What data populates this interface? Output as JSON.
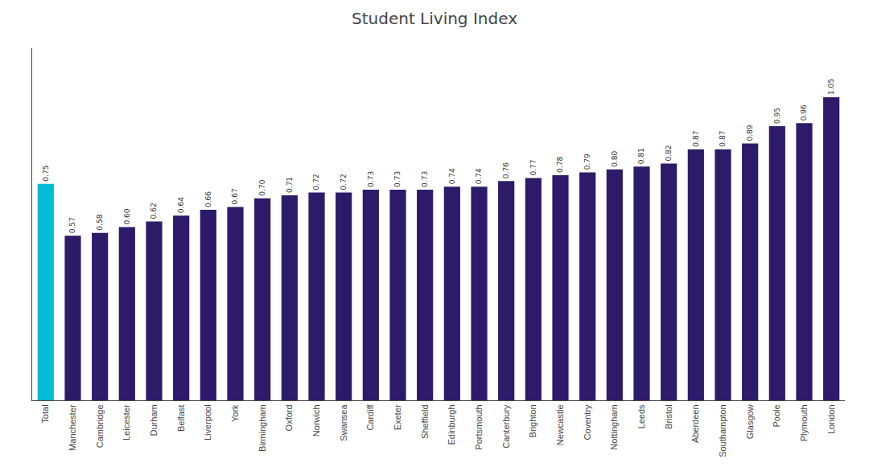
{
  "chart_data": {
    "type": "bar",
    "title": "Student Living Index",
    "categories": [
      "Total",
      "Manchester",
      "Cambridge",
      "Leicester",
      "Durham",
      "Belfast",
      "Liverpool",
      "York",
      "Birmingham",
      "Oxford",
      "Norwich",
      "Swansea",
      "Cardiff",
      "Exeter",
      "Sheffield",
      "Edinburgh",
      "Portsmouth",
      "Canterbury",
      "Brighton",
      "Newcastle",
      "Coventry",
      "Nottingham",
      "Leeds",
      "Bristol",
      "Aberdeen",
      "Southampton",
      "Glasgow",
      "Poole",
      "Plymouth",
      "London"
    ],
    "values": [
      0.75,
      0.57,
      0.58,
      0.6,
      0.62,
      0.64,
      0.66,
      0.67,
      0.7,
      0.71,
      0.72,
      0.72,
      0.73,
      0.73,
      0.73,
      0.74,
      0.74,
      0.76,
      0.77,
      0.78,
      0.79,
      0.8,
      0.81,
      0.82,
      0.87,
      0.87,
      0.89,
      0.95,
      0.96,
      1.05
    ],
    "value_labels": [
      "0.75",
      "0.57",
      "0.58",
      "0.60",
      "0.62",
      "0.64",
      "0.66",
      "0.67",
      "0.70",
      "0.71",
      "0.72",
      "0.72",
      "0.73",
      "0.73",
      "0.73",
      "0.74",
      "0.74",
      "0.76",
      "0.77",
      "0.78",
      "0.79",
      "0.80",
      "0.81",
      "0.82",
      "0.87",
      "0.87",
      "0.89",
      "0.95",
      "0.96",
      "1.05"
    ],
    "colors": [
      "#00bcd4",
      "#2d1b69",
      "#2d1b69",
      "#2d1b69",
      "#2d1b69",
      "#2d1b69",
      "#2d1b69",
      "#2d1b69",
      "#2d1b69",
      "#2d1b69",
      "#2d1b69",
      "#2d1b69",
      "#2d1b69",
      "#2d1b69",
      "#2d1b69",
      "#2d1b69",
      "#2d1b69",
      "#2d1b69",
      "#2d1b69",
      "#2d1b69",
      "#2d1b69",
      "#2d1b69",
      "#2d1b69",
      "#2d1b69",
      "#2d1b69",
      "#2d1b69",
      "#2d1b69",
      "#2d1b69",
      "#2d1b69",
      "#2d1b69"
    ],
    "ylim": [
      0,
      1.22
    ],
    "data_labels": true,
    "tick_labels": "x",
    "grid": false
  }
}
